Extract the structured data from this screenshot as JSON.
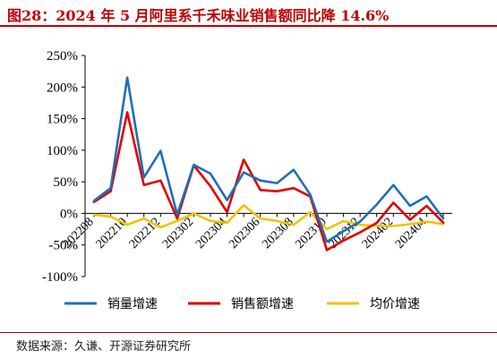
{
  "header": {
    "title": "图28：2024 年 5 月阿里系千禾味业销售额同比降 14.6%"
  },
  "footer": {
    "source": "数据来源：久谦、开源证券研究所"
  },
  "chart_data": {
    "type": "line",
    "title": "",
    "xlabel": "",
    "ylabel": "",
    "ylim": [
      -100,
      250
    ],
    "yticks": [
      -100,
      -50,
      0,
      50,
      100,
      150,
      200,
      250
    ],
    "ytick_labels": [
      "-100%",
      "-50%",
      "0%",
      "50%",
      "100%",
      "150%",
      "200%",
      "250%"
    ],
    "x": [
      "202208",
      "202209",
      "202210",
      "202211",
      "202212",
      "202301",
      "202302",
      "202303",
      "202304",
      "202305",
      "202306",
      "202307",
      "202308",
      "202309",
      "202310",
      "202311",
      "202312",
      "202401",
      "202402",
      "202403",
      "202404",
      "202405"
    ],
    "xtick_labels": [
      "202208",
      "202210",
      "202212",
      "202302",
      "202304",
      "202306",
      "202308",
      "202310",
      "202312",
      "202402",
      "202404"
    ],
    "legend_position": "bottom",
    "series": [
      {
        "name": "销量增速",
        "color": "#1f6fb5",
        "values": [
          20,
          40,
          215,
          57,
          99,
          -2,
          77,
          63,
          21,
          65,
          52,
          48,
          69,
          30,
          -45,
          -28,
          -13,
          14,
          45,
          12,
          27,
          -8
        ]
      },
      {
        "name": "销售额增速",
        "color": "#e00000",
        "values": [
          18,
          35,
          160,
          45,
          52,
          -8,
          76,
          43,
          2,
          85,
          37,
          35,
          40,
          27,
          -58,
          -43,
          -30,
          -15,
          17,
          -10,
          12,
          -14.6
        ]
      },
      {
        "name": "均价增速",
        "color": "#f2c200",
        "values": [
          -2,
          -5,
          -18,
          -8,
          -22,
          -12,
          0,
          -12,
          -15,
          13,
          -8,
          -12,
          -18,
          2,
          -25,
          -12,
          -18,
          -20,
          -20,
          -17,
          -13,
          -17
        ]
      }
    ]
  }
}
